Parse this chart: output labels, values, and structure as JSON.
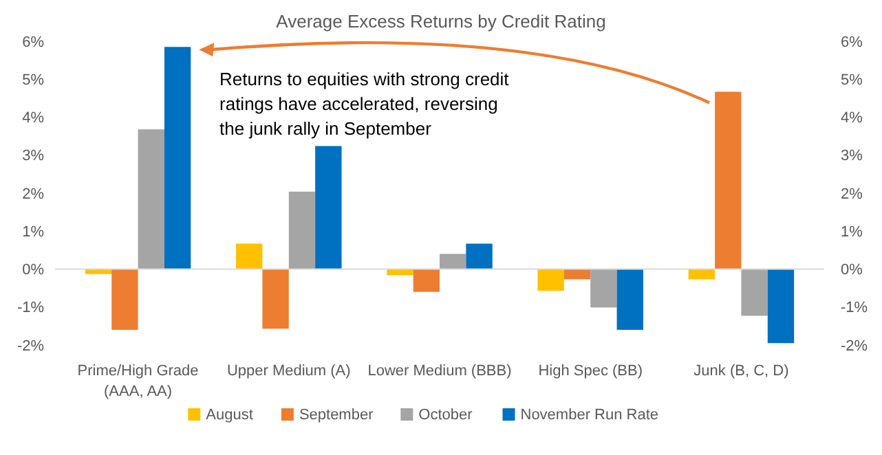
{
  "chart_data": {
    "type": "bar",
    "title": "Average Excess Returns by Credit Rating",
    "categories": [
      "Prime/High Grade (AAA, AA)",
      "Upper Medium (A)",
      "Lower Medium (BBB)",
      "High Spec (BB)",
      "Junk (B, C, D)"
    ],
    "series": [
      {
        "name": "August",
        "color": "#ffc000",
        "values": [
          -0.13,
          0.67,
          -0.16,
          -0.57,
          -0.27
        ]
      },
      {
        "name": "September",
        "color": "#ed7d31",
        "values": [
          -1.6,
          -1.57,
          -0.6,
          -0.27,
          4.67
        ]
      },
      {
        "name": "October",
        "color": "#a5a5a5",
        "values": [
          3.68,
          2.04,
          0.4,
          -1.01,
          -1.23
        ]
      },
      {
        "name": "November Run Rate",
        "color": "#0070c0",
        "values": [
          5.85,
          3.24,
          0.67,
          -1.6,
          -1.95
        ]
      }
    ],
    "ylim": [
      -2,
      6
    ],
    "yticks": [
      {
        "value": -2,
        "label": "-2%"
      },
      {
        "value": -1,
        "label": "-1%"
      },
      {
        "value": 0,
        "label": "0%"
      },
      {
        "value": 1,
        "label": "1%"
      },
      {
        "value": 2,
        "label": "2%"
      },
      {
        "value": 3,
        "label": "3%"
      },
      {
        "value": 4,
        "label": "4%"
      },
      {
        "value": 5,
        "label": "5%"
      },
      {
        "value": 6,
        "label": "6%"
      }
    ],
    "y2lim": [
      -2,
      6
    ],
    "y2ticks": [
      {
        "value": -2,
        "label": "-2%"
      },
      {
        "value": -1,
        "label": "-1%"
      },
      {
        "value": 0,
        "label": "0%"
      },
      {
        "value": 1,
        "label": "1%"
      },
      {
        "value": 2,
        "label": "2%"
      },
      {
        "value": 3,
        "label": "3%"
      },
      {
        "value": 4,
        "label": "4%"
      },
      {
        "value": 5,
        "label": "5%"
      },
      {
        "value": 6,
        "label": "6%"
      }
    ],
    "annotations": [
      "Returns to equities with strong credit ratings have accelerated, reversing the junk rally in September"
    ],
    "legend": "bottom"
  }
}
